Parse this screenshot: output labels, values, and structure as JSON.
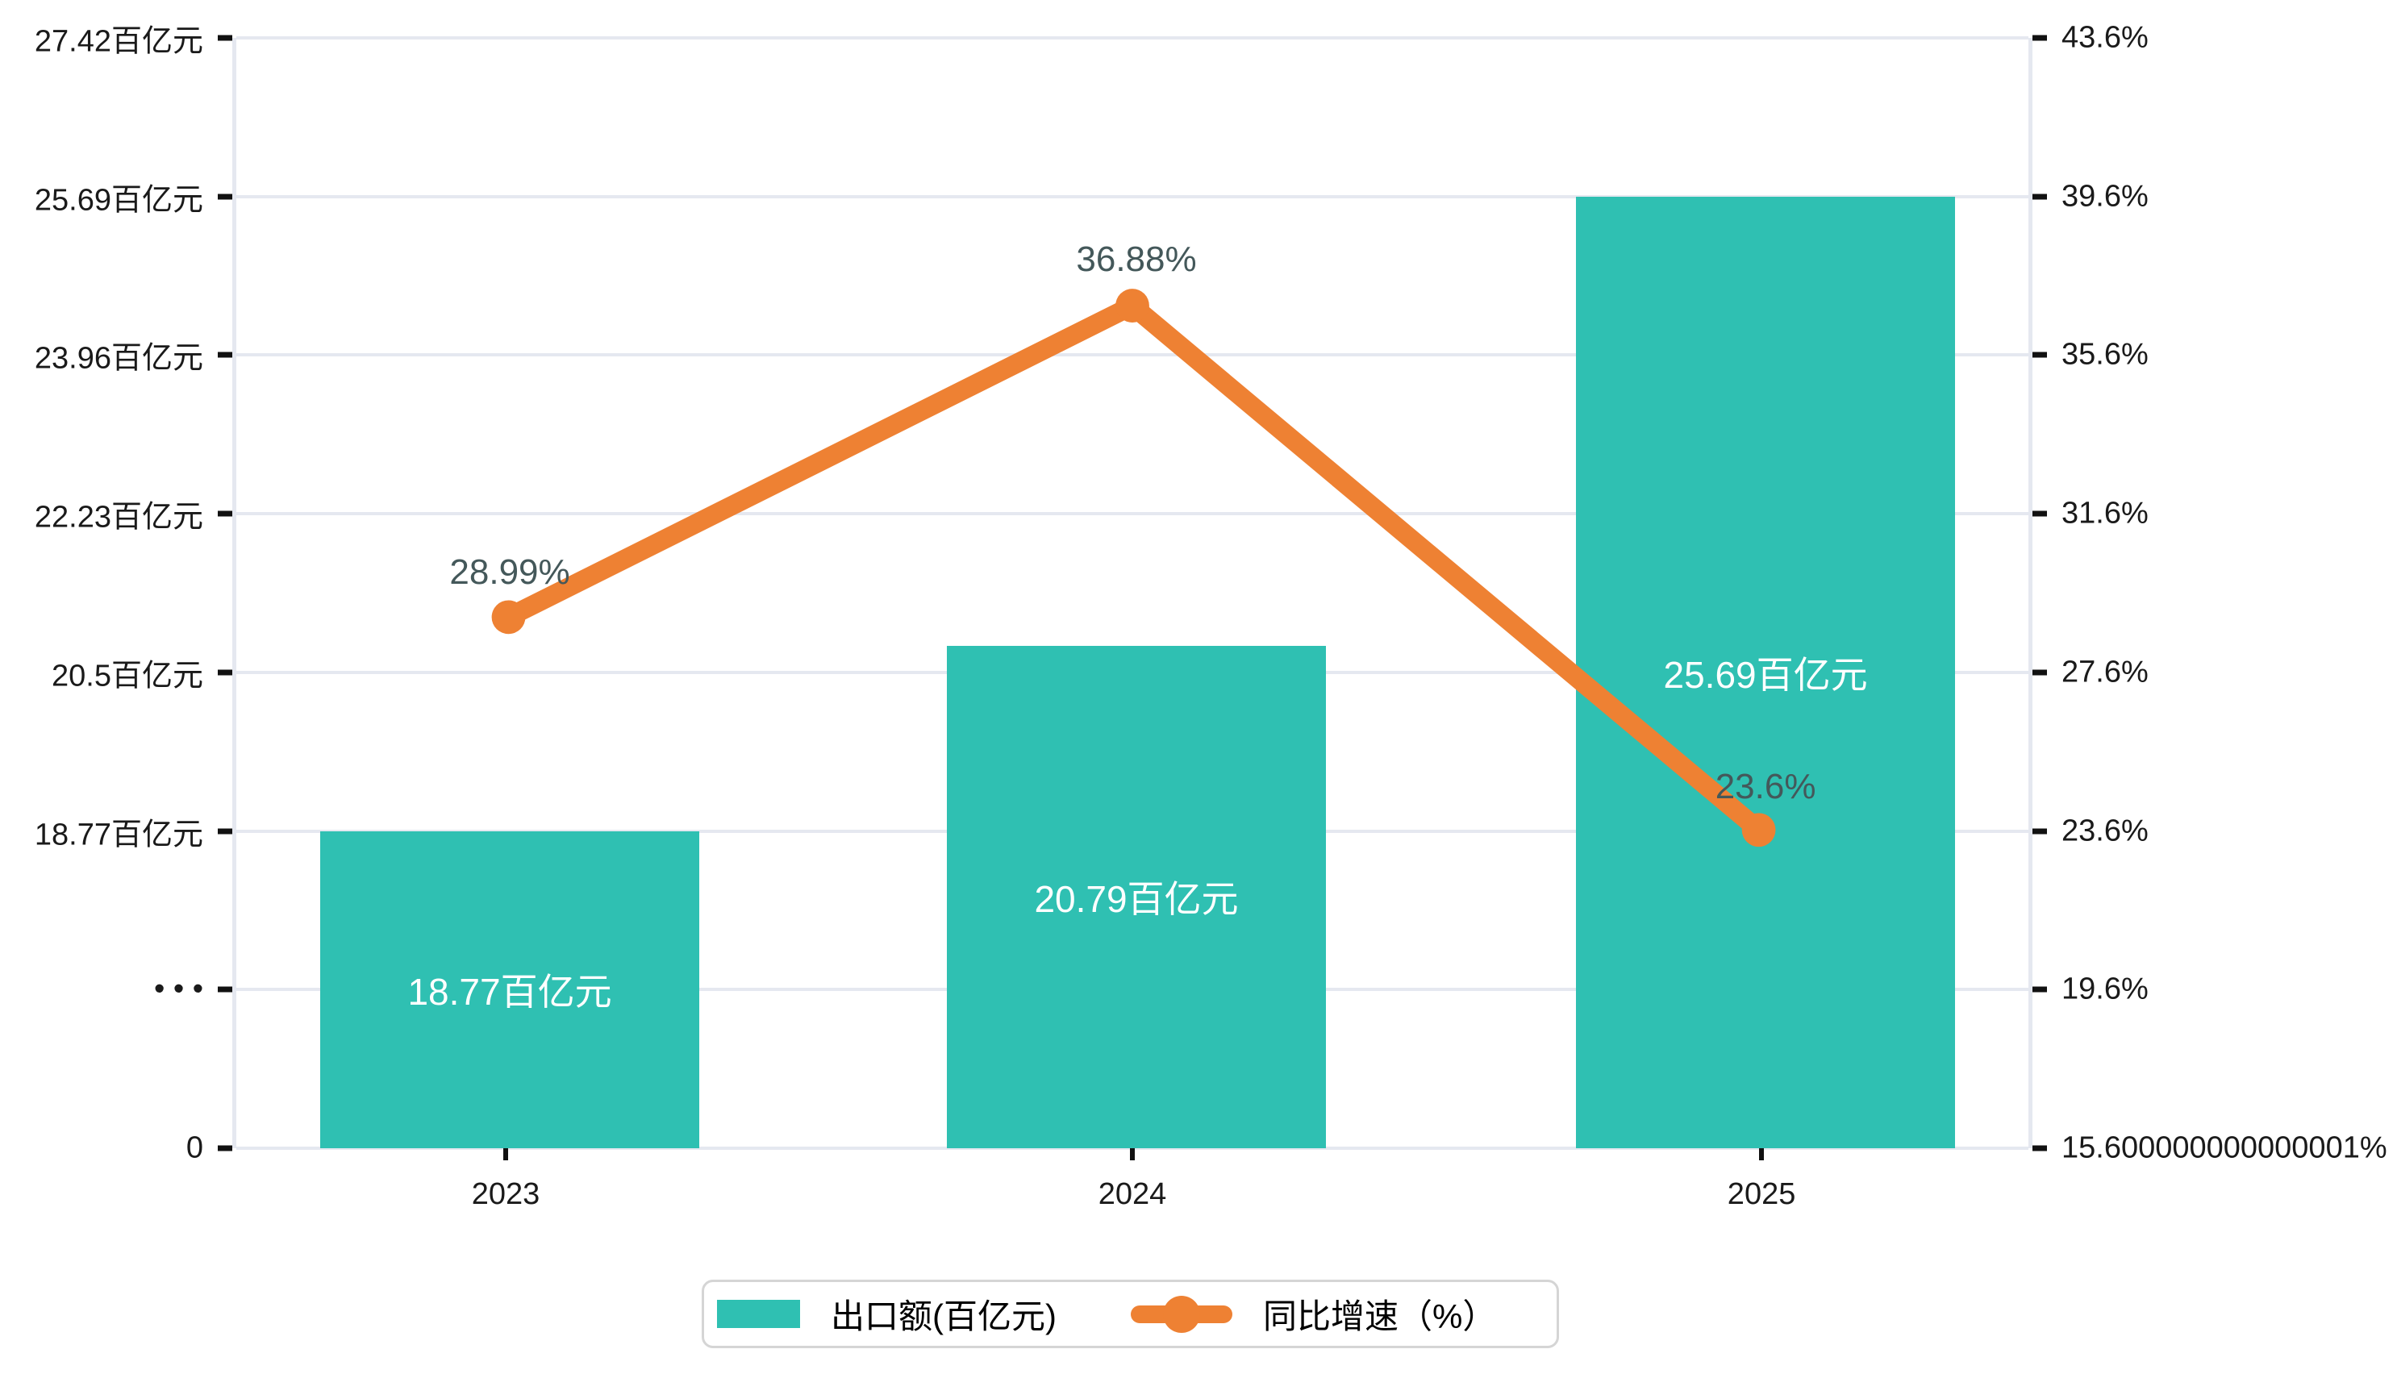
{
  "chart_data": {
    "type": "bar",
    "subtype": "bar+line-combo",
    "categories": [
      "2023",
      "2024",
      "2025"
    ],
    "series": [
      {
        "name": "出口额(百亿元)",
        "type": "bar",
        "values": [
          18.77,
          20.79,
          25.69
        ],
        "data_labels": [
          "18.77百亿元",
          "20.79百亿元",
          "25.69百亿元"
        ],
        "color": "#2fc0b2",
        "axis": "left"
      },
      {
        "name": "同比增速（%）",
        "type": "line",
        "values": [
          28.99,
          36.88,
          23.6
        ],
        "data_labels": [
          "28.99%",
          "36.88%",
          "23.6%"
        ],
        "color": "#ee8133",
        "axis": "right"
      }
    ],
    "left_axis": {
      "tick_labels": [
        "27.42百亿元",
        "25.69百亿元",
        "23.96百亿元",
        "22.23百亿元",
        "20.5百亿元",
        "18.77百亿元",
        "• • •",
        "0"
      ],
      "broken_axis_marker": "• • •",
      "base_value": 18.77,
      "base_row_index": 5,
      "units_per_row": 1.73
    },
    "right_axis": {
      "tick_labels": [
        "43.6%",
        "39.6%",
        "35.6%",
        "31.6%",
        "27.6%",
        "23.6%",
        "19.6%",
        "15.600000000000001%"
      ],
      "min": 15.6,
      "max": 43.6
    },
    "x_axis": {
      "labels": [
        "2023",
        "2024",
        "2025"
      ]
    },
    "legend": {
      "position": "bottom",
      "items": [
        {
          "label": "出口额(百亿元)",
          "swatch": "bar"
        },
        {
          "label": "同比增速（%）",
          "swatch": "line"
        }
      ]
    },
    "grid": true,
    "colors": {
      "bar": "#2fc0b2",
      "line": "#ee8133",
      "gridline": "#e5e8f0",
      "tick": "#111111",
      "axis_text": "#1a1a1a",
      "bar_label_text": "#ffffff",
      "point_label_text": "#44585a",
      "background": "#ffffff",
      "legend_border": "#d5d5d5"
    }
  }
}
